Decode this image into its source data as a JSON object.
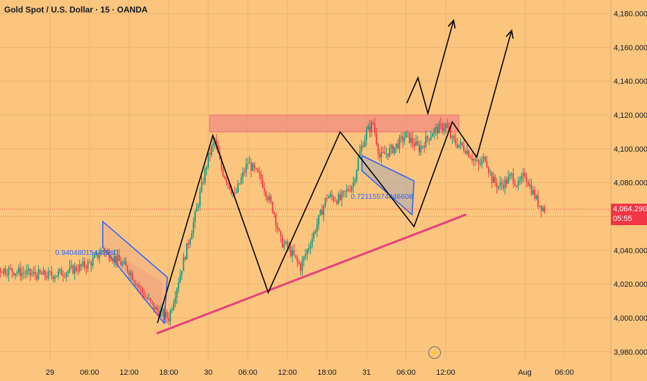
{
  "header": {
    "title": "Gold Spot / U.S. Dollar · 15 · OANDA"
  },
  "colors": {
    "background": "#fbc57e",
    "up": "#089981",
    "down": "#f23645",
    "trendline": "#e83e7c",
    "channel": "#2962ff",
    "resistance": "#f28b82",
    "drawing": "#000000"
  },
  "price_tag": {
    "price": "4,064.290",
    "countdown": "05:55"
  },
  "annotations": {
    "fib_left": "0.94048015441260",
    "fib_right": "0.72115574046608"
  },
  "chart_data": {
    "type": "candlestick",
    "symbol": "XAUUSD",
    "interval": "15",
    "ylim": [
      3975,
      4188
    ],
    "y_ticks": [
      3980,
      4000,
      4020,
      4040,
      4060,
      4080,
      4100,
      4120,
      4140,
      4160,
      4180
    ],
    "y_tick_labels": [
      "3,980.000",
      "4,000.000",
      "4,020.000",
      "4,040.000",
      "4,060.000",
      "4,080.000",
      "4,100.000",
      "4,120.000",
      "4,140.000",
      "4,160.000",
      "4,180.000"
    ],
    "x_ticks": [
      {
        "label": "18:00",
        "h": -42
      },
      {
        "label": "29",
        "h": -30
      },
      {
        "label": "06:00",
        "h": -24
      },
      {
        "label": "12:00",
        "h": -18
      },
      {
        "label": "18:00",
        "h": -12
      },
      {
        "label": "30",
        "h": -6
      },
      {
        "label": "06:00",
        "h": 0
      },
      {
        "label": "12:00",
        "h": 6
      },
      {
        "label": "18:00",
        "h": 12
      },
      {
        "label": "31",
        "h": 18
      },
      {
        "label": "06:00",
        "h": 24
      },
      {
        "label": "12:00",
        "h": 30
      },
      {
        "label": "Aug",
        "h": 42
      },
      {
        "label": "06:00",
        "h": 48
      }
    ],
    "last_price": 4064.29,
    "resistance_zone": {
      "from_h": -5.8,
      "to_h": 32,
      "low": 4110,
      "high": 4120
    },
    "trendline": {
      "from": [
        -13.7,
        3991
      ],
      "to": [
        33,
        4061
      ]
    },
    "price_path": [
      [
        -48,
        4034
      ],
      [
        -44,
        4032
      ],
      [
        -40,
        4030
      ],
      [
        -36,
        4028
      ],
      [
        -33,
        4026
      ],
      [
        -30,
        4025
      ],
      [
        -27,
        4028
      ],
      [
        -24,
        4032
      ],
      [
        -22,
        4040
      ],
      [
        -20,
        4035
      ],
      [
        -18,
        4028
      ],
      [
        -16,
        4015
      ],
      [
        -14,
        4005
      ],
      [
        -12,
        4000
      ],
      [
        -10,
        4030
      ],
      [
        -8,
        4060
      ],
      [
        -6,
        4095
      ],
      [
        -5,
        4105
      ],
      [
        -4,
        4088
      ],
      [
        -2,
        4072
      ],
      [
        0,
        4092
      ],
      [
        2,
        4082
      ],
      [
        4,
        4062
      ],
      [
        5,
        4045
      ],
      [
        6,
        4042
      ],
      [
        8,
        4030
      ],
      [
        9,
        4040
      ],
      [
        10,
        4050
      ],
      [
        12,
        4072
      ],
      [
        14,
        4070
      ],
      [
        16,
        4080
      ],
      [
        17,
        4098
      ],
      [
        18,
        4110
      ],
      [
        19,
        4115
      ],
      [
        20,
        4095
      ],
      [
        22,
        4100
      ],
      [
        24,
        4108
      ],
      [
        26,
        4100
      ],
      [
        28,
        4110
      ],
      [
        30,
        4114
      ],
      [
        31,
        4105
      ],
      [
        33,
        4100
      ],
      [
        35,
        4090
      ],
      [
        36,
        4095
      ],
      [
        37,
        4082
      ],
      [
        38,
        4078
      ],
      [
        39,
        4080
      ],
      [
        40,
        4084
      ],
      [
        41,
        4078
      ],
      [
        42,
        4085
      ],
      [
        43,
        4076
      ],
      [
        44,
        4068
      ],
      [
        45,
        4064.29
      ]
    ],
    "channels": [
      {
        "poly": [
          [
            -22,
            4057
          ],
          [
            -12.2,
            4024
          ],
          [
            -12.7,
            3997
          ],
          [
            -22,
            4042
          ]
        ],
        "fill_top": [
          [
            -22,
            4043
          ],
          [
            -13,
            4021
          ],
          [
            -13,
            4006
          ],
          [
            -22,
            4040
          ]
        ]
      },
      {
        "poly": [
          [
            17.3,
            4096
          ],
          [
            25.2,
            4081
          ],
          [
            24.9,
            4061
          ],
          [
            17.3,
            4087
          ]
        ]
      }
    ],
    "zigzag": [
      [
        -13.7,
        3997
      ],
      [
        -5.3,
        4108
      ],
      [
        3.1,
        4015
      ],
      [
        14,
        4110
      ],
      [
        25.2,
        4054
      ],
      [
        31,
        4116
      ],
      [
        34.7,
        4095
      ],
      [
        40,
        4170
      ]
    ],
    "top_path": [
      [
        24.1,
        4127
      ],
      [
        25.8,
        4142
      ],
      [
        27.3,
        4121
      ],
      [
        31.2,
        4176
      ]
    ],
    "arrow_heads": [
      [
        31.2,
        4176
      ],
      [
        40,
        4170
      ]
    ]
  }
}
